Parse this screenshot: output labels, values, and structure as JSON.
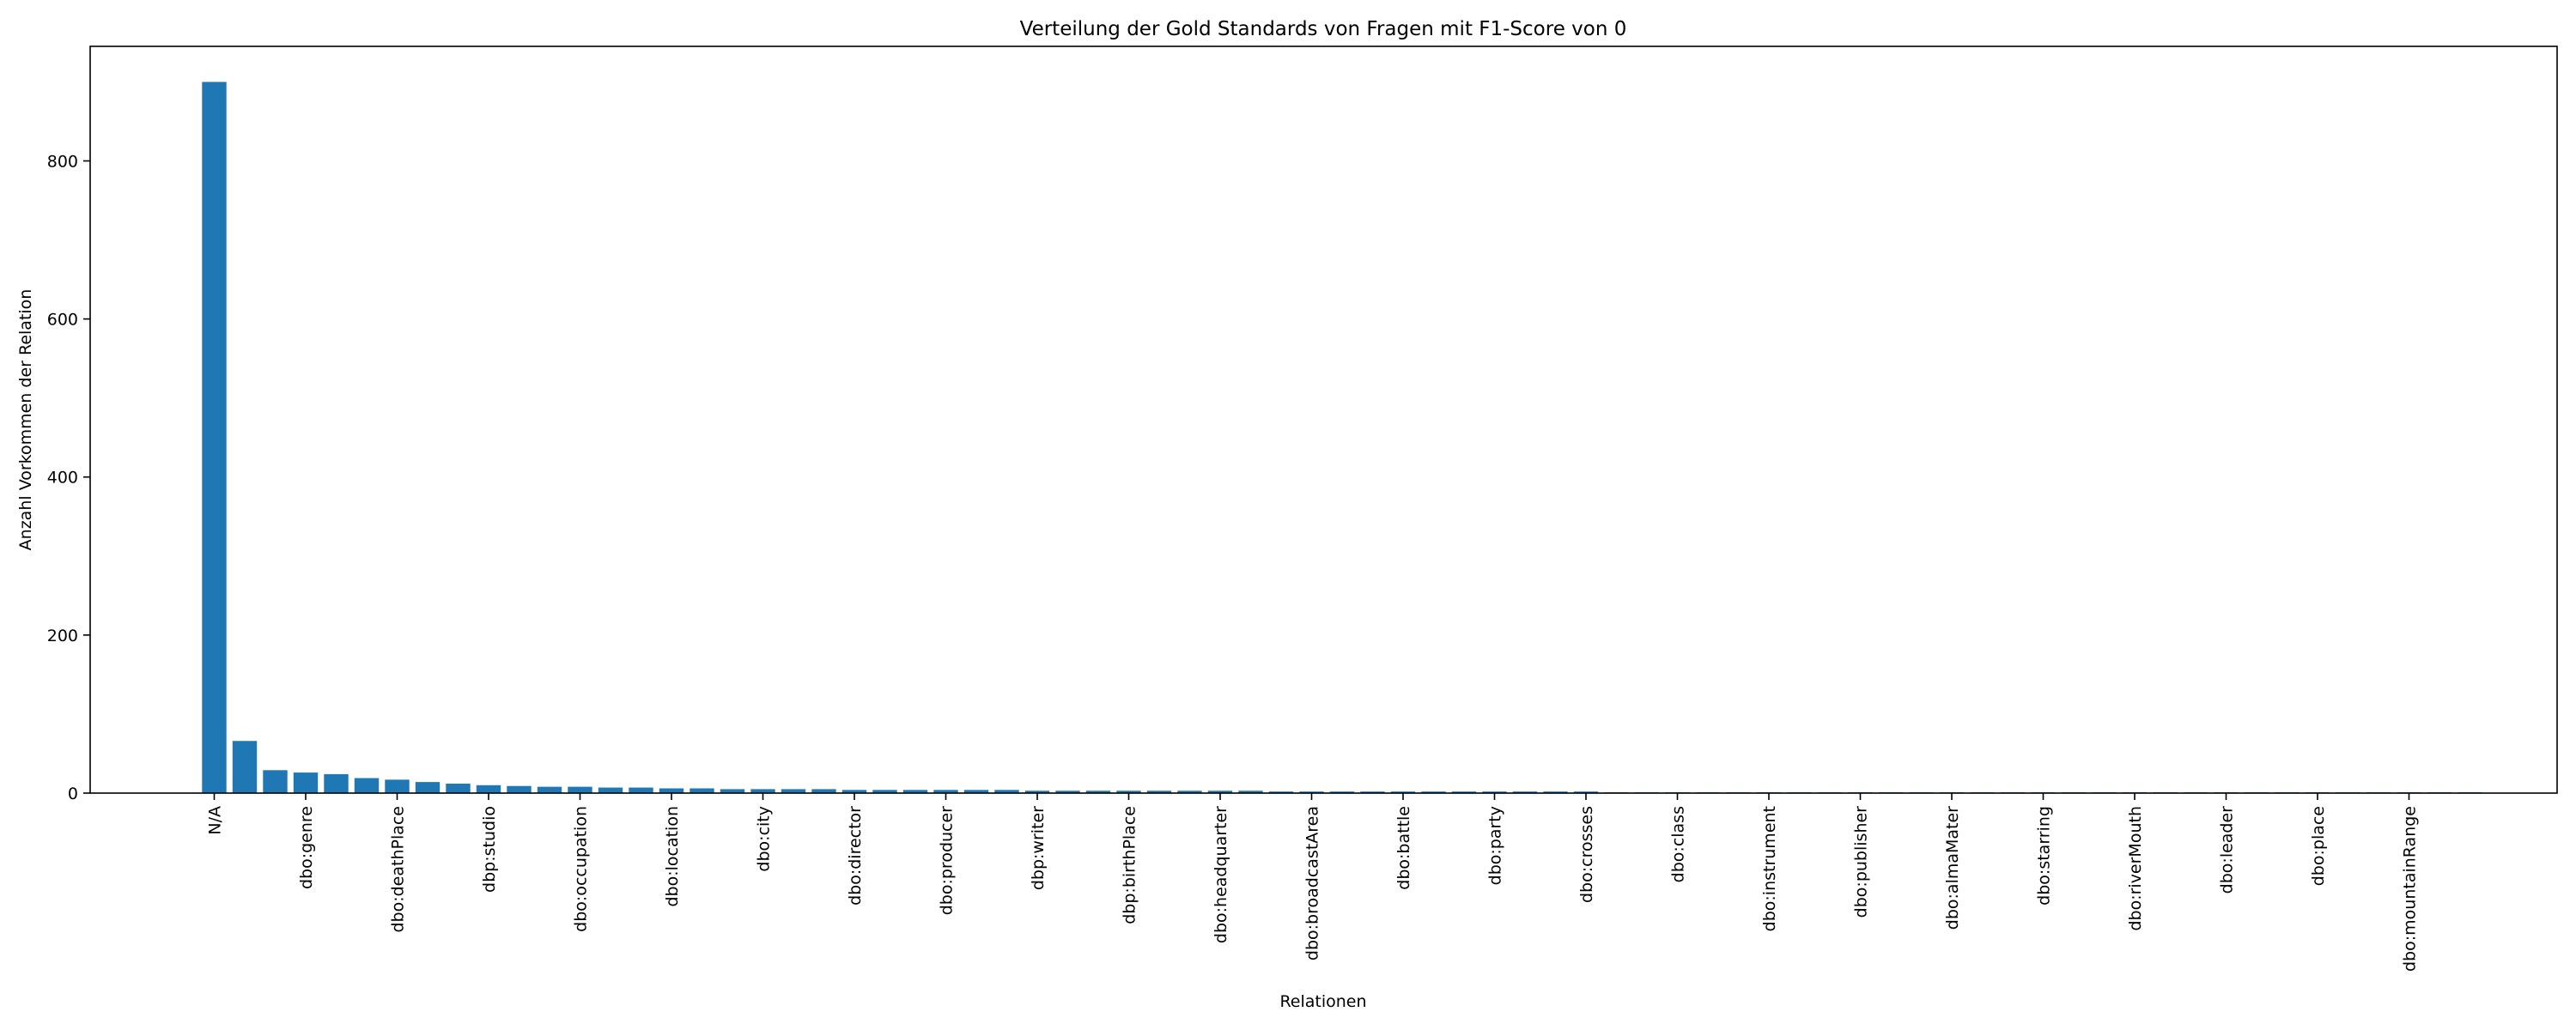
{
  "chart_data": {
    "type": "bar",
    "title": "Verteilung der Gold Standards von Fragen mit F1-Score von 0",
    "xlabel": "Relationen",
    "ylabel": "Anzahl Vorkommen der Relation",
    "ylim": [
      0,
      945
    ],
    "yticks": [
      0,
      200,
      400,
      600,
      800
    ],
    "grid": false,
    "color": "#1f77b4",
    "labeled_every": 3,
    "categories": [
      "N/A",
      "",
      "",
      "dbo:genre",
      "",
      "",
      "dbo:deathPlace",
      "",
      "",
      "dbp:studio",
      "",
      "",
      "dbo:occupation",
      "",
      "",
      "dbo:location",
      "",
      "",
      "dbo:city",
      "",
      "",
      "dbo:director",
      "",
      "",
      "dbo:producer",
      "",
      "",
      "dbp:writer",
      "",
      "",
      "dbp:birthPlace",
      "",
      "",
      "dbo:headquarter",
      "",
      "",
      "dbo:broadcastArea",
      "",
      "",
      "dbo:battle",
      "",
      "",
      "dbo:party",
      "",
      "",
      "dbo:crosses",
      "",
      "",
      "dbo:class",
      "",
      "",
      "dbo:instrument",
      "",
      "",
      "dbo:publisher",
      "",
      "",
      "dbo:almaMater",
      "",
      "",
      "dbo:starring",
      "",
      "",
      "dbo:riverMouth",
      "",
      "",
      "dbo:leader",
      "",
      "",
      "dbo:place",
      "",
      "",
      "dbo:mountainRange",
      "",
      ""
    ],
    "values": [
      900,
      66,
      29,
      26,
      24,
      19,
      17,
      14,
      12,
      10,
      9,
      8,
      8,
      7,
      7,
      6,
      6,
      5,
      5,
      5,
      5,
      4,
      4,
      4,
      4,
      4,
      4,
      3,
      3,
      3,
      3,
      3,
      3,
      3,
      3,
      2,
      2,
      2,
      2,
      2,
      2,
      2,
      2,
      2,
      2,
      2,
      1,
      1,
      1,
      1,
      1,
      1,
      1,
      1,
      1,
      1,
      1,
      1,
      1,
      1,
      1,
      1,
      1,
      1,
      1,
      1,
      1,
      1,
      1,
      1,
      1,
      1,
      1,
      1,
      1
    ]
  }
}
